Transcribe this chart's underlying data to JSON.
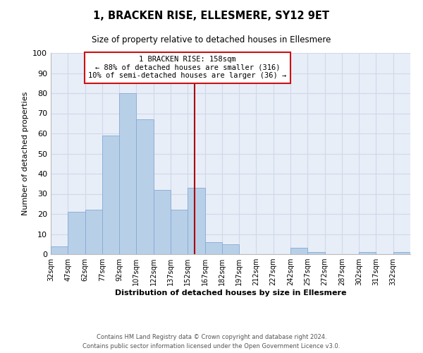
{
  "title": "1, BRACKEN RISE, ELLESMERE, SY12 9ET",
  "subtitle": "Size of property relative to detached houses in Ellesmere",
  "xlabel": "Distribution of detached houses by size in Ellesmere",
  "ylabel": "Number of detached properties",
  "bar_color": "#b8cfe8",
  "bar_edge_color": "#85aad4",
  "background_color": "#e8eef8",
  "grid_color": "#d0d8e8",
  "vline_color": "#aa0000",
  "vline_x": 158,
  "annotation_line1": "1 BRACKEN RISE: 158sqm",
  "annotation_line2": "← 88% of detached houses are smaller (316)",
  "annotation_line3": "10% of semi-detached houses are larger (36) →",
  "footer1": "Contains HM Land Registry data © Crown copyright and database right 2024.",
  "footer2": "Contains public sector information licensed under the Open Government Licence v3.0.",
  "bin_edges": [
    32,
    47,
    62,
    77,
    92,
    107,
    122,
    137,
    152,
    167,
    182,
    197,
    212,
    227,
    242,
    257,
    272,
    287,
    302,
    317,
    332,
    347
  ],
  "bin_counts": [
    4,
    21,
    22,
    59,
    80,
    67,
    32,
    22,
    33,
    6,
    5,
    0,
    0,
    0,
    3,
    1,
    0,
    0,
    1,
    0,
    1
  ],
  "xlim_min": 32,
  "xlim_max": 347,
  "ylim": [
    0,
    100
  ],
  "yticks": [
    0,
    10,
    20,
    30,
    40,
    50,
    60,
    70,
    80,
    90,
    100
  ],
  "x_tick_labels": [
    "32sqm",
    "47sqm",
    "62sqm",
    "77sqm",
    "92sqm",
    "107sqm",
    "122sqm",
    "137sqm",
    "152sqm",
    "167sqm",
    "182sqm",
    "197sqm",
    "212sqm",
    "227sqm",
    "242sqm",
    "257sqm",
    "272sqm",
    "287sqm",
    "302sqm",
    "317sqm",
    "332sqm"
  ]
}
